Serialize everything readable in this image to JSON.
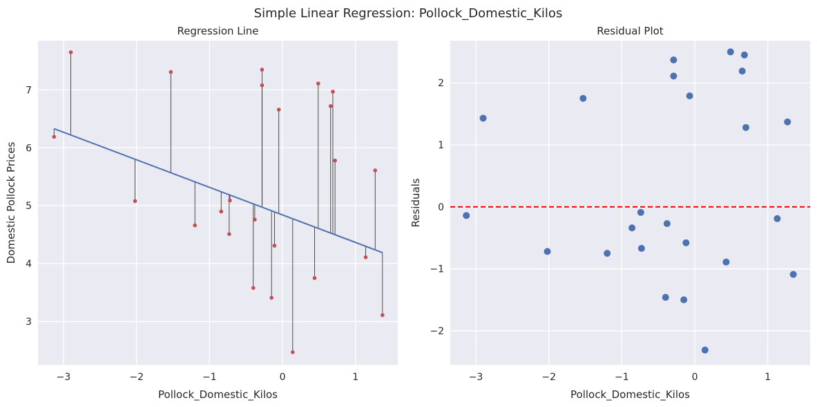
{
  "figure": {
    "title": "Simple Linear Regression: Pollock_Domestic_Kilos"
  },
  "chart_data": [
    {
      "type": "scatter",
      "title": "Regression Line",
      "xlabel": "Pollock_Domestic_Kilos",
      "ylabel": "Domestic Pollock Prices",
      "xlim": [
        -3.35,
        1.58
      ],
      "ylim": [
        2.25,
        7.85
      ],
      "xticks": [
        -3,
        -2,
        -1,
        0,
        1
      ],
      "yticks": [
        3,
        4,
        5,
        6,
        7
      ],
      "grid": true,
      "colors": {
        "points": "#c44e52",
        "fit": "#4c72b0",
        "residual_lines": "#222222",
        "background": "#eaeaf2"
      },
      "regression_line": {
        "x": [
          -3.13,
          1.37
        ],
        "y": [
          6.33,
          4.19
        ]
      },
      "points": [
        {
          "x": -3.13,
          "y": 6.19
        },
        {
          "x": -2.9,
          "y": 7.65
        },
        {
          "x": -2.02,
          "y": 5.08
        },
        {
          "x": -1.53,
          "y": 7.31
        },
        {
          "x": -1.2,
          "y": 4.66
        },
        {
          "x": -0.84,
          "y": 4.9
        },
        {
          "x": -0.73,
          "y": 4.51
        },
        {
          "x": -0.72,
          "y": 5.09
        },
        {
          "x": -0.4,
          "y": 3.58
        },
        {
          "x": -0.38,
          "y": 4.76
        },
        {
          "x": -0.28,
          "y": 7.35
        },
        {
          "x": -0.28,
          "y": 7.08
        },
        {
          "x": -0.15,
          "y": 3.41
        },
        {
          "x": -0.11,
          "y": 4.31
        },
        {
          "x": -0.05,
          "y": 6.66
        },
        {
          "x": 0.14,
          "y": 2.47
        },
        {
          "x": 0.44,
          "y": 3.75
        },
        {
          "x": 0.49,
          "y": 7.11
        },
        {
          "x": 0.66,
          "y": 6.72
        },
        {
          "x": 0.69,
          "y": 6.97
        },
        {
          "x": 0.72,
          "y": 5.78
        },
        {
          "x": 1.14,
          "y": 4.11
        },
        {
          "x": 1.27,
          "y": 5.61
        },
        {
          "x": 1.37,
          "y": 3.11
        }
      ]
    },
    {
      "type": "scatter",
      "title": "Residual Plot",
      "xlabel": "Pollock_Domestic_Kilos",
      "ylabel": "Residuals",
      "xlim": [
        -3.35,
        1.58
      ],
      "ylim": [
        -2.55,
        2.68
      ],
      "xticks": [
        -3,
        -2,
        -1,
        0,
        1
      ],
      "yticks": [
        -2,
        -1,
        0,
        1,
        2
      ],
      "grid": true,
      "reference_line": {
        "y": 0,
        "color": "#ff0000",
        "style": "dashed"
      },
      "colors": {
        "points": "#4c72b0",
        "background": "#eaeaf2"
      },
      "points": [
        {
          "x": -3.13,
          "y": -0.14
        },
        {
          "x": -2.9,
          "y": 1.43
        },
        {
          "x": -2.02,
          "y": -0.72
        },
        {
          "x": -1.53,
          "y": 1.75
        },
        {
          "x": -1.2,
          "y": -0.75
        },
        {
          "x": -0.86,
          "y": -0.34
        },
        {
          "x": -0.74,
          "y": -0.09
        },
        {
          "x": -0.73,
          "y": -0.67
        },
        {
          "x": -0.4,
          "y": -1.46
        },
        {
          "x": -0.38,
          "y": -0.27
        },
        {
          "x": -0.29,
          "y": 2.37
        },
        {
          "x": -0.29,
          "y": 2.11
        },
        {
          "x": -0.15,
          "y": -1.5
        },
        {
          "x": -0.12,
          "y": -0.58
        },
        {
          "x": -0.07,
          "y": 1.79
        },
        {
          "x": 0.14,
          "y": -2.31
        },
        {
          "x": 0.43,
          "y": -0.89
        },
        {
          "x": 0.49,
          "y": 2.5
        },
        {
          "x": 0.65,
          "y": 2.19
        },
        {
          "x": 0.68,
          "y": 2.45
        },
        {
          "x": 0.7,
          "y": 1.28
        },
        {
          "x": 1.13,
          "y": -0.19
        },
        {
          "x": 1.27,
          "y": 1.37
        },
        {
          "x": 1.35,
          "y": -1.09
        }
      ]
    }
  ]
}
